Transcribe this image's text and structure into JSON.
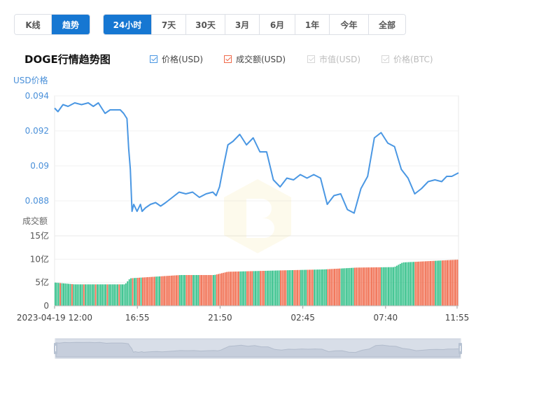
{
  "tabs": {
    "mode": [
      {
        "label": "K线",
        "active": false
      },
      {
        "label": "趋势",
        "active": true
      }
    ],
    "range": [
      {
        "label": "24小时",
        "active": true
      },
      {
        "label": "7天",
        "active": false
      },
      {
        "label": "30天",
        "active": false
      },
      {
        "label": "3月",
        "active": false
      },
      {
        "label": "6月",
        "active": false
      },
      {
        "label": "1年",
        "active": false
      },
      {
        "label": "今年",
        "active": false
      },
      {
        "label": "全部",
        "active": false
      }
    ]
  },
  "colors": {
    "accent": "#1677d2",
    "price_line": "#4a97e3",
    "volume_up": "#f0694a",
    "volume_down": "#2fbf87",
    "axis_text_price": "#4a90d9",
    "grid": "#e8e8e8"
  },
  "chart_data": {
    "type": "line",
    "title": "DOGE行情趋势图",
    "legend": [
      {
        "name": "价格(USD)",
        "checked": true,
        "color": "#4a97e3"
      },
      {
        "name": "成交额(USD)",
        "checked": true,
        "color": "#f0694a"
      },
      {
        "name": "市值(USD)",
        "checked": false,
        "color": "#cccccc"
      },
      {
        "name": "价格(BTC)",
        "checked": false,
        "color": "#cccccc"
      }
    ],
    "price_axis": {
      "label": "USD价格",
      "ticks": [
        "0.094",
        "0.092",
        "0.09",
        "0.088"
      ],
      "ylim": [
        0.0868,
        0.0941
      ]
    },
    "volume_axis": {
      "label": "成交额",
      "ticks": [
        "15亿",
        "10亿",
        "5亿",
        "0"
      ],
      "ylim": [
        0,
        15
      ]
    },
    "x_ticks": [
      "2023-04-19 12:00",
      "16:55",
      "21:50",
      "02:45",
      "07:40",
      "11:55"
    ],
    "x_range_hours": [
      0,
      24
    ],
    "price": {
      "name": "价格(USD)",
      "x_hours": [
        0,
        0.2,
        0.5,
        0.8,
        1.2,
        1.6,
        2.0,
        2.3,
        2.6,
        3.0,
        3.3,
        3.6,
        3.9,
        4.1,
        4.3,
        4.4,
        4.5,
        4.6,
        4.7,
        4.8,
        4.9,
        5.0,
        5.1,
        5.2,
        5.4,
        5.7,
        6.0,
        6.3,
        6.6,
        7.0,
        7.4,
        7.8,
        8.2,
        8.6,
        9.0,
        9.4,
        9.6,
        9.8,
        10.0,
        10.3,
        10.6,
        11.0,
        11.4,
        11.8,
        12.2,
        12.6,
        13.0,
        13.4,
        13.8,
        14.2,
        14.6,
        15.0,
        15.4,
        15.8,
        16.2,
        16.6,
        17.0,
        17.4,
        17.8,
        18.2,
        18.6,
        19.0,
        19.4,
        19.8,
        20.2,
        20.6,
        21.0,
        21.4,
        21.8,
        22.2,
        22.6,
        23.0,
        23.3,
        23.6,
        24.0
      ],
      "values": [
        0.0933,
        0.0931,
        0.0935,
        0.0934,
        0.0936,
        0.0935,
        0.0936,
        0.0934,
        0.0936,
        0.093,
        0.0932,
        0.0932,
        0.0932,
        0.093,
        0.0927,
        0.091,
        0.0898,
        0.0874,
        0.0878,
        0.0876,
        0.0874,
        0.0876,
        0.0878,
        0.0874,
        0.0876,
        0.0878,
        0.0879,
        0.0877,
        0.0879,
        0.0882,
        0.0885,
        0.0884,
        0.0885,
        0.0882,
        0.0884,
        0.0885,
        0.0883,
        0.0888,
        0.0898,
        0.0912,
        0.0914,
        0.0918,
        0.0912,
        0.0916,
        0.0908,
        0.0908,
        0.0892,
        0.0888,
        0.0893,
        0.0892,
        0.0895,
        0.0893,
        0.0895,
        0.0893,
        0.0878,
        0.0883,
        0.0884,
        0.0875,
        0.0873,
        0.0887,
        0.0894,
        0.0916,
        0.0919,
        0.0913,
        0.0911,
        0.0898,
        0.0893,
        0.0884,
        0.0887,
        0.0891,
        0.0892,
        0.0891,
        0.0894,
        0.0894,
        0.0896
      ]
    },
    "volume": {
      "name": "成交额(USD)",
      "x_hours": [
        0,
        1.2,
        4.2,
        4.5,
        7.5,
        9.5,
        10.3,
        13.5,
        16,
        18,
        20.2,
        20.7,
        24
      ],
      "values": [
        5.0,
        4.6,
        4.6,
        5.9,
        6.6,
        6.6,
        7.3,
        7.6,
        7.8,
        8.2,
        8.3,
        9.3,
        9.9
      ]
    },
    "grid": true
  }
}
